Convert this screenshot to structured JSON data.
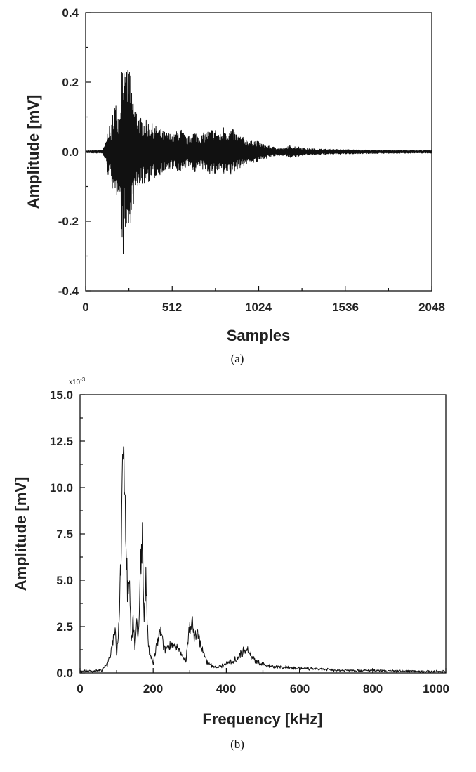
{
  "chart_data": [
    {
      "type": "line",
      "panel_label": "(a)",
      "xlabel": "Samples",
      "ylabel": "Amplitude [mV]",
      "xlim": [
        0,
        2048
      ],
      "ylim": [
        -0.4,
        0.4
      ],
      "x_ticks": [
        0,
        512,
        1024,
        1536,
        2048
      ],
      "x_tick_labels": [
        "0",
        "512",
        "1024",
        "1536",
        "2048"
      ],
      "y_ticks": [
        -0.4,
        -0.2,
        0.0,
        0.2,
        0.4
      ],
      "y_tick_labels": [
        "-0.4",
        "-0.2",
        "0.0",
        "0.2",
        "0.4"
      ],
      "grid": false,
      "series": [
        {
          "x": [
            0,
            100,
            120,
            135,
            150,
            165,
            180,
            200,
            210,
            220,
            230,
            240,
            250,
            260,
            270,
            290,
            320,
            360,
            400,
            460,
            520,
            560,
            600,
            640,
            680,
            720,
            760,
            800,
            820,
            840,
            860,
            880,
            900,
            940,
            980,
            1000,
            1020,
            1060,
            1100,
            1140,
            1180,
            1200,
            1260,
            1300,
            1400,
            1500,
            1600,
            1700,
            1800,
            1900,
            2048
          ],
          "envelope": [
            0.003,
            0.005,
            0.03,
            0.08,
            0.06,
            0.15,
            0.14,
            0.1,
            0.22,
            0.34,
            0.2,
            0.24,
            0.25,
            0.27,
            0.18,
            0.14,
            0.1,
            0.09,
            0.08,
            0.06,
            0.05,
            0.07,
            0.04,
            0.06,
            0.05,
            0.06,
            0.07,
            0.05,
            0.08,
            0.06,
            0.07,
            0.06,
            0.05,
            0.04,
            0.03,
            0.035,
            0.03,
            0.02,
            0.015,
            0.012,
            0.01,
            0.018,
            0.015,
            0.01,
            0.008,
            0.007,
            0.006,
            0.005,
            0.005,
            0.004,
            0.004
          ]
        }
      ]
    },
    {
      "type": "line",
      "panel_label": "(b)",
      "xlabel": "Frequency [kHz]",
      "ylabel": "Amplitude [mV]",
      "y_multiplier": "x10",
      "y_multiplier_exponent": "-3",
      "xlim": [
        0,
        1000
      ],
      "ylim": [
        0,
        15.0
      ],
      "x_ticks": [
        0,
        200,
        400,
        600,
        800,
        1000
      ],
      "x_tick_labels": [
        "0",
        "200",
        "400",
        "600",
        "800",
        "1000"
      ],
      "y_ticks": [
        0,
        2.5,
        5.0,
        7.5,
        10.0,
        12.5,
        15.0
      ],
      "y_tick_labels": [
        "0.0",
        "2.5",
        "5.0",
        "7.5",
        "10.0",
        "12.5",
        "15.0"
      ],
      "grid": false,
      "series": [
        {
          "x": [
            0,
            40,
            60,
            75,
            85,
            95,
            100,
            105,
            110,
            115,
            120,
            125,
            130,
            135,
            140,
            145,
            150,
            155,
            160,
            165,
            170,
            175,
            180,
            185,
            190,
            195,
            200,
            210,
            220,
            230,
            240,
            250,
            260,
            270,
            280,
            290,
            300,
            305,
            310,
            320,
            330,
            340,
            350,
            370,
            390,
            410,
            430,
            445,
            455,
            465,
            480,
            500,
            530,
            560,
            600,
            650,
            700,
            750,
            800,
            850,
            900,
            950,
            1000
          ],
          "y": [
            0.1,
            0.1,
            0.15,
            0.5,
            1.2,
            2.5,
            1.0,
            2.0,
            5.0,
            9.0,
            12.3,
            8.5,
            4.0,
            5.5,
            1.5,
            3.0,
            1.2,
            2.5,
            1.8,
            6.0,
            7.5,
            3.0,
            5.0,
            2.0,
            1.0,
            0.8,
            0.5,
            1.5,
            2.3,
            1.2,
            1.4,
            1.6,
            1.3,
            1.2,
            0.9,
            0.7,
            2.5,
            3.0,
            2.0,
            2.2,
            1.5,
            0.9,
            0.5,
            0.3,
            0.4,
            0.6,
            0.8,
            1.1,
            1.4,
            1.0,
            0.6,
            0.45,
            0.35,
            0.3,
            0.25,
            0.2,
            0.15,
            0.15,
            0.12,
            0.1,
            0.1,
            0.08,
            0.08
          ]
        }
      ]
    }
  ]
}
